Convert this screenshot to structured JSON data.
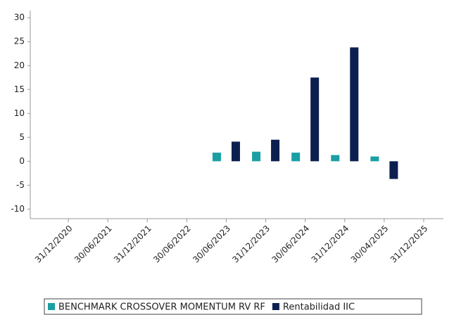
{
  "chart_data": {
    "type": "bar",
    "categories": [
      "31/12/2020",
      "30/06/2021",
      "31/12/2021",
      "30/06/2022",
      "30/06/2023",
      "31/12/2023",
      "30/06/2024",
      "31/12/2024",
      "30/04/2025",
      "31/12/2025"
    ],
    "series": [
      {
        "name": "BENCHMARK CROSSOVER MOMENTUM RV RF",
        "color": "#1a9fa3",
        "values": [
          null,
          null,
          null,
          null,
          1.8,
          2.0,
          1.8,
          1.3,
          1.0,
          null
        ]
      },
      {
        "name": "Rentabilidad IIC",
        "color": "#0c1f4f",
        "values": [
          null,
          null,
          null,
          null,
          4.1,
          4.5,
          17.5,
          23.8,
          -3.7,
          null
        ]
      }
    ],
    "ylim": [
      -12,
      31.5
    ],
    "yticks": [
      -10,
      -5,
      0,
      5,
      10,
      15,
      20,
      25,
      30
    ],
    "grid": false,
    "legend": "bottom"
  }
}
